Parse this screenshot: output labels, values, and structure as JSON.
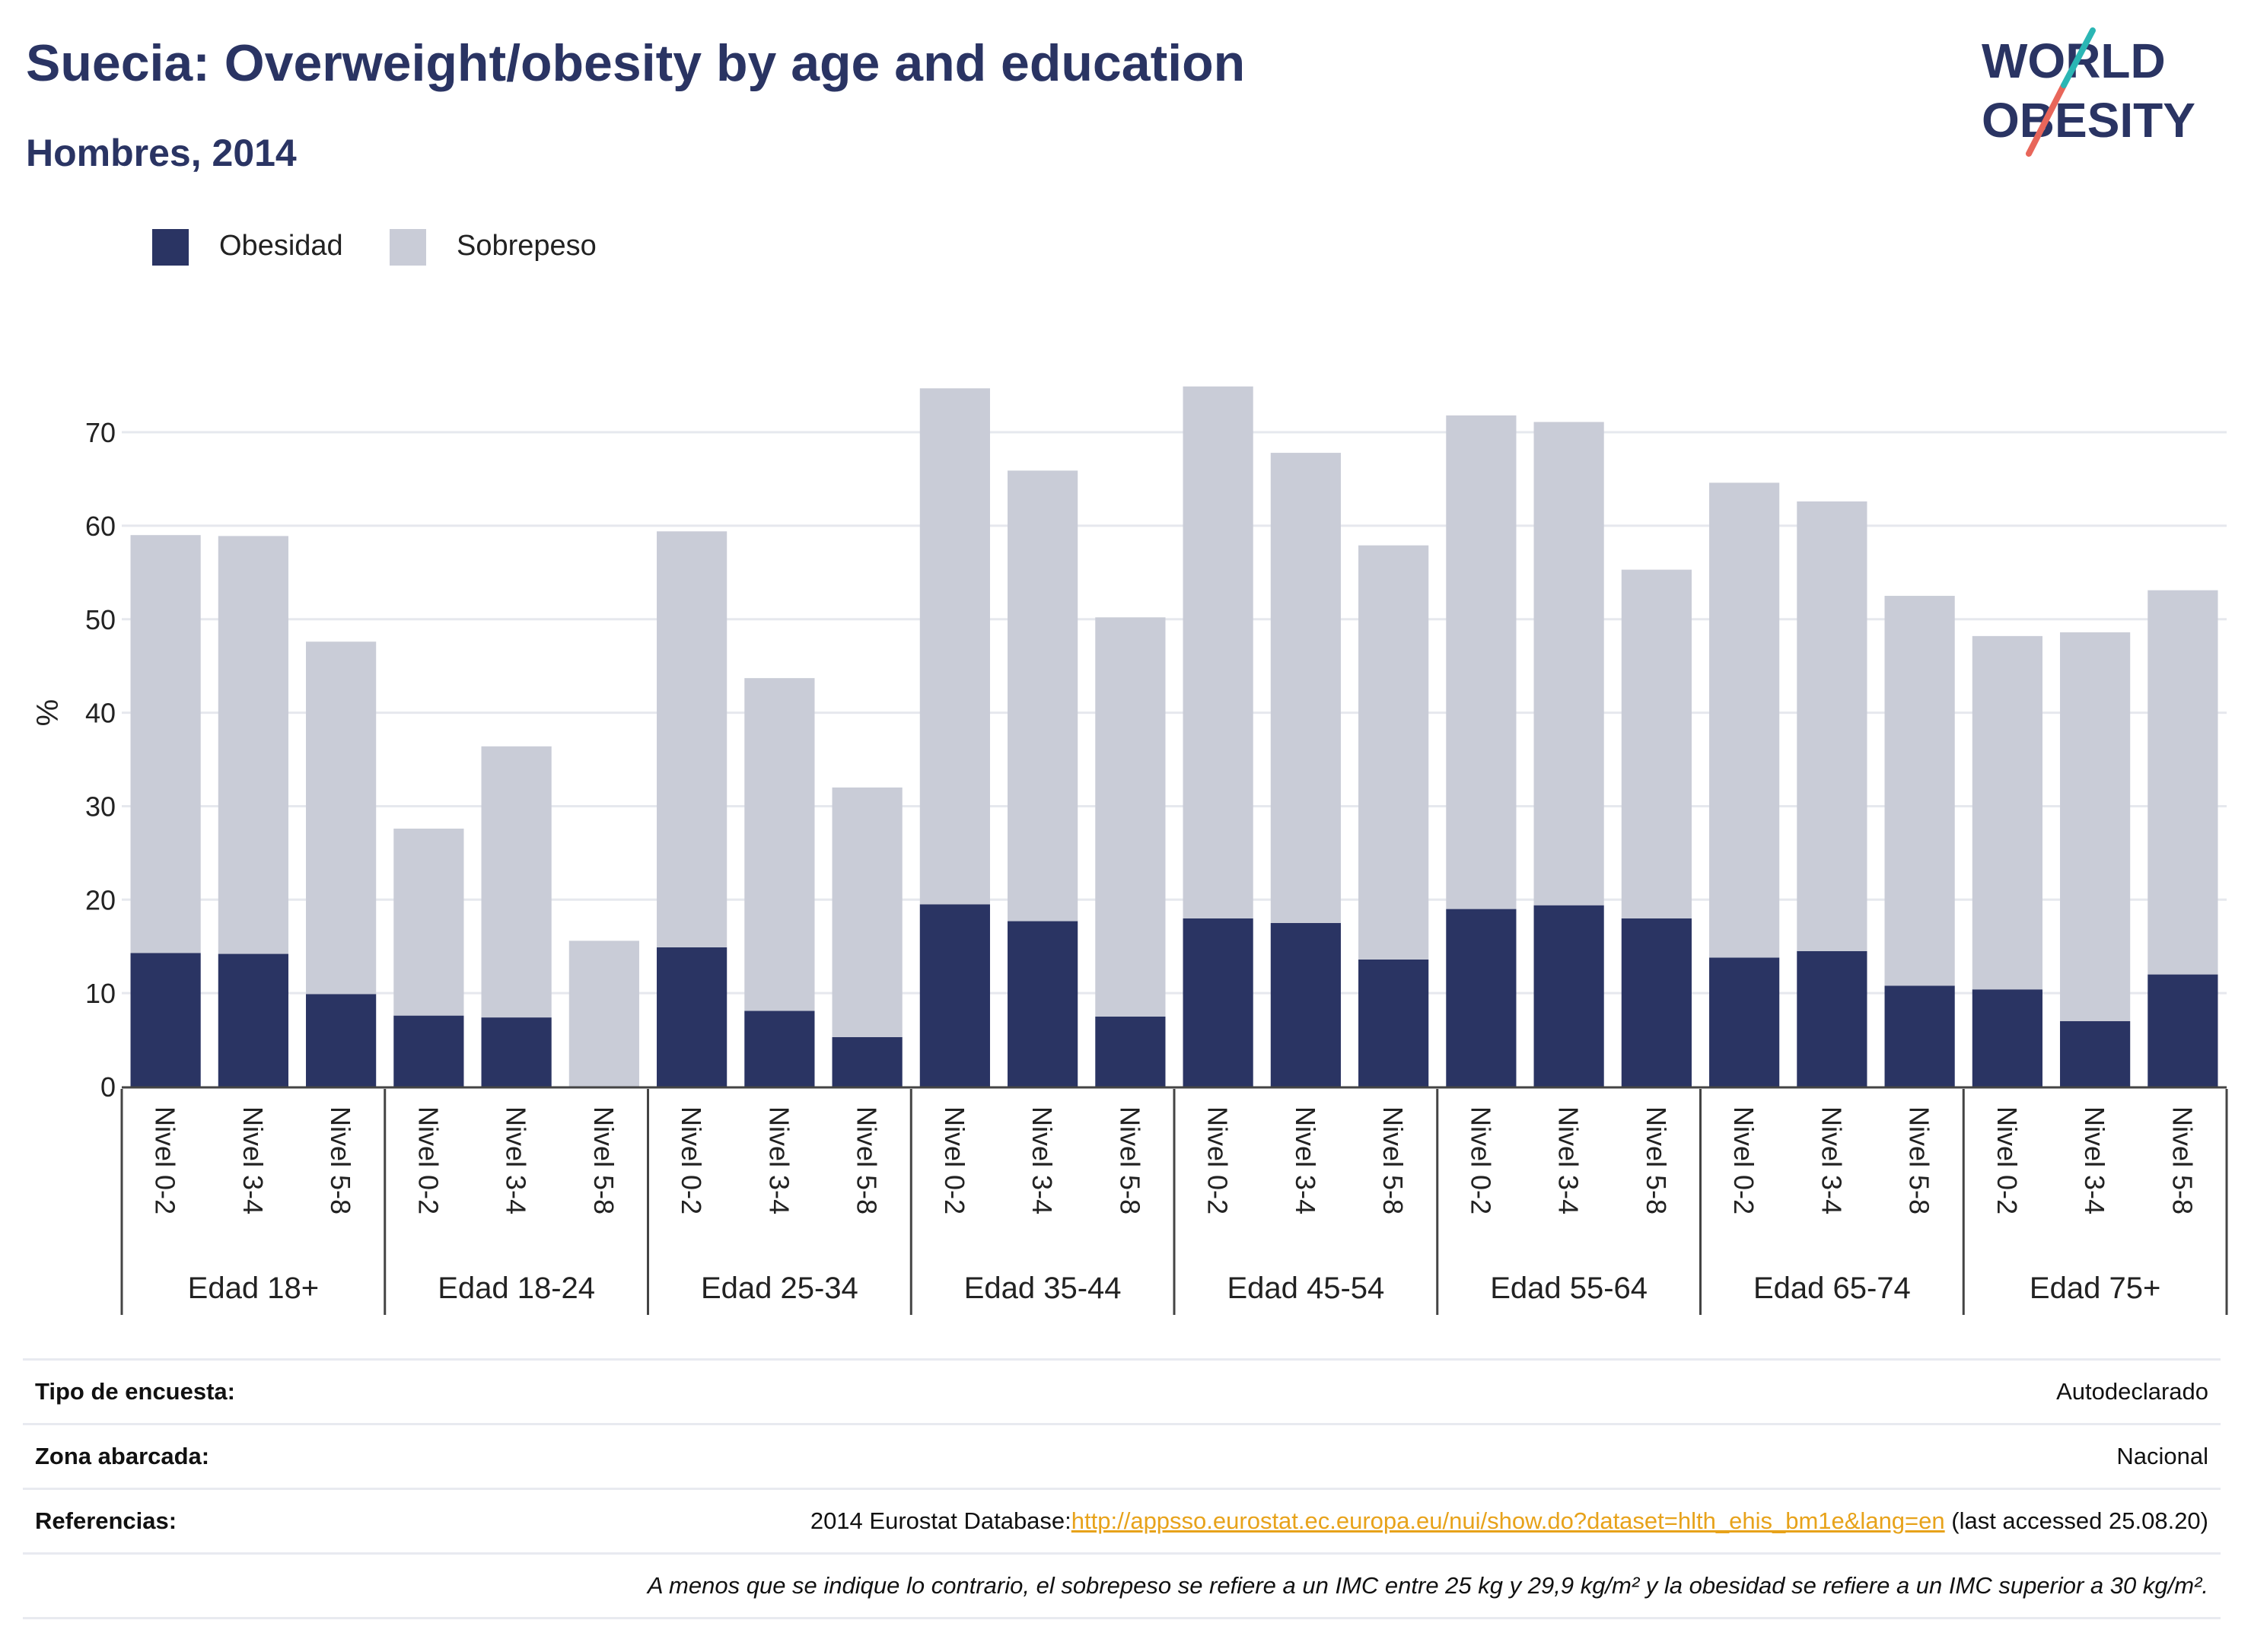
{
  "header": {
    "title": "Suecia: Overweight/obesity by age and education",
    "subtitle": "Hombres, 2014"
  },
  "logo": {
    "line1": "WORLD",
    "line2": "OBESITY"
  },
  "legend": {
    "items": [
      {
        "label": "Obesidad",
        "color": "#2a3463"
      },
      {
        "label": "Sobrepeso",
        "color": "#c9ccd7"
      }
    ]
  },
  "chart_data": {
    "type": "bar",
    "stacked": true,
    "ylabel": "%",
    "ylim": [
      0,
      80
    ],
    "yticks": [
      0,
      10,
      20,
      30,
      40,
      50,
      60,
      70
    ],
    "grid": true,
    "legend_position": "top-left",
    "groups": [
      "Edad 18+",
      "Edad 18-24",
      "Edad 25-34",
      "Edad 35-44",
      "Edad 45-54",
      "Edad 55-64",
      "Edad 65-74",
      "Edad 75+"
    ],
    "levels": [
      "Nivel 0-2",
      "Nivel 3-4",
      "Nivel 5-8"
    ],
    "series": [
      {
        "name": "Obesidad",
        "color": "#2a3463",
        "values": [
          14.3,
          14.2,
          9.9,
          7.6,
          7.4,
          0,
          14.9,
          8.1,
          5.3,
          19.5,
          17.7,
          7.5,
          18.0,
          17.5,
          13.6,
          19.0,
          19.4,
          18.0,
          13.8,
          14.5,
          10.8,
          10.4,
          7.0,
          12.0
        ]
      },
      {
        "name": "Sobrepeso",
        "color": "#c9ccd7",
        "values": [
          44.7,
          44.7,
          37.7,
          20.0,
          29.0,
          15.6,
          44.5,
          35.6,
          26.7,
          55.2,
          48.2,
          42.7,
          56.9,
          50.3,
          44.3,
          52.8,
          51.7,
          37.3,
          50.8,
          48.1,
          41.7,
          37.8,
          41.6,
          41.1
        ]
      }
    ]
  },
  "info": {
    "survey_type_label": "Tipo de encuesta:",
    "survey_type_value": "Autodeclarado",
    "area_label": "Zona abarcada:",
    "area_value": "Nacional",
    "references_label": "Referencias:",
    "references_prefix": "2014 Eurostat Database:",
    "references_link": "http://appsso.eurostat.ec.europa.eu/nui/show.do?dataset=hlth_ehis_bm1e&lang=en",
    "references_suffix": " (last accessed 25.08.20)",
    "note": "A menos que se indique lo contrario, el sobrepeso se refiere a un IMC entre 25 kg y 29,9 kg/m² y la obesidad se refiere a un IMC superior a 30 kg/m²."
  }
}
